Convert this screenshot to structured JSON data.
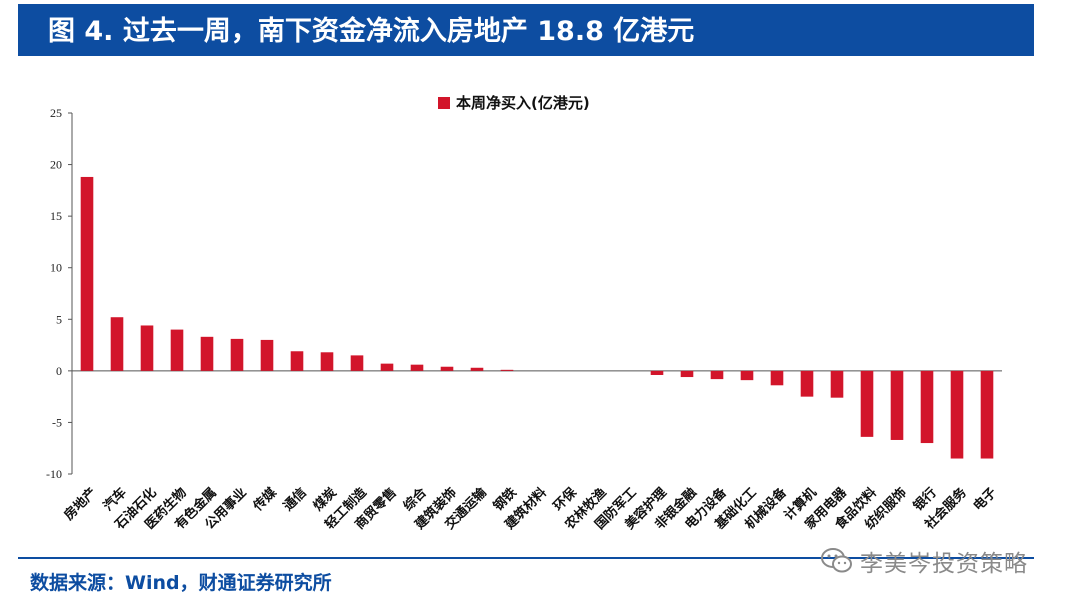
{
  "header": {
    "title": "图 4. 过去一周，南下资金净流入房地产 18.8 亿港元"
  },
  "footer": {
    "source": "数据来源：Wind，财通证券研究所"
  },
  "watermark": {
    "text": "李美岑投资策略",
    "icon": "wechat-icon"
  },
  "colors": {
    "header_bg": "#0d4da1",
    "bar": "#d2152a",
    "source_text": "#0d4da1"
  },
  "chart_data": {
    "type": "bar",
    "categories": [
      "房地产",
      "汽车",
      "石油石化",
      "医药生物",
      "有色金属",
      "公用事业",
      "传媒",
      "通信",
      "煤炭",
      "轻工制造",
      "商贸零售",
      "综合",
      "建筑装饰",
      "交通运输",
      "钢铁",
      "建筑材料",
      "环保",
      "农林牧渔",
      "国防军工",
      "美容护理",
      "非银金融",
      "电力设备",
      "基础化工",
      "机械设备",
      "计算机",
      "家用电器",
      "食品饮料",
      "纺织服饰",
      "银行",
      "社会服务",
      "电子"
    ],
    "series": [
      {
        "name": "本周净买入(亿港元)",
        "values": [
          18.8,
          5.2,
          4.4,
          4.0,
          3.3,
          3.1,
          3.0,
          1.9,
          1.8,
          1.5,
          0.7,
          0.6,
          0.4,
          0.3,
          0.1,
          0.0,
          0.0,
          0.0,
          0.0,
          -0.4,
          -0.6,
          -0.8,
          -0.9,
          -1.4,
          -2.5,
          -2.6,
          -6.4,
          -6.7,
          -7.0,
          -8.5,
          -8.5
        ]
      }
    ],
    "yticks": [
      25,
      20,
      15,
      10,
      5,
      0,
      -5,
      -10
    ],
    "ylim": [
      -10,
      25
    ],
    "legend_position": "top-center"
  }
}
